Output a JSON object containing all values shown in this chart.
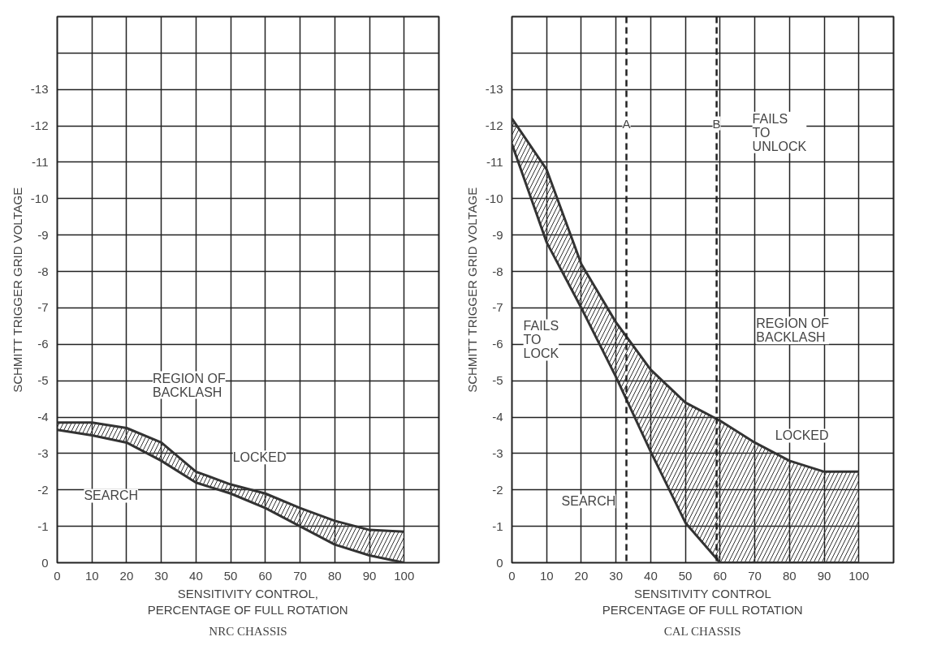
{
  "chart_data": [
    {
      "type": "line",
      "title": "NRC CHASSIS",
      "xlabel": "SENSITIVITY CONTROL,\nPERCENTAGE OF FULL ROTATION",
      "ylabel": "SCHMITT TRIGGER GRID VOLTAGE",
      "x": [
        0,
        10,
        20,
        30,
        40,
        50,
        60,
        70,
        80,
        90,
        100
      ],
      "series": [
        {
          "color": "#333333",
          "values": [
            -3.85,
            -3.85,
            -3.7,
            -3.3,
            -2.5,
            -2.15,
            -1.9,
            -1.5,
            -1.15,
            -0.9,
            -0.85
          ]
        },
        {
          "color": "#333333",
          "values": [
            -3.65,
            -3.5,
            -3.3,
            -2.8,
            -2.2,
            -1.9,
            -1.5,
            -1.0,
            -0.5,
            -0.2,
            0
          ],
          "lower": [
            -3.65,
            -3.5,
            -3.3,
            -2.8,
            -2.2,
            -1.9,
            -1.5,
            -1.0,
            -0.5,
            -0.2,
            0
          ],
          "upper": [
            -3.85,
            -3.85,
            -3.7,
            -3.3,
            -2.5,
            -2.15,
            -1.9,
            -1.5,
            -1.15,
            -0.9,
            -0.85
          ]
        }
      ],
      "xlim": [
        0,
        110
      ],
      "xticks": [
        0,
        10,
        20,
        30,
        40,
        50,
        60,
        70,
        80,
        90,
        100
      ],
      "ylim": [
        0,
        -15
      ],
      "yticks": [
        0,
        -1,
        -2,
        -3,
        -4,
        -5,
        -6,
        -7,
        -8,
        -9,
        -10,
        -11,
        -12,
        -13,
        {
          "value": -14,
          "label": null
        }
      ],
      "grid": true,
      "line_style": "solid",
      "annotations": [
        "REGION OF\nBACKLASH",
        "LOCKED",
        "SEARCH"
      ]
    },
    {
      "type": "line",
      "title": "CAL CHASSIS",
      "xlabel": "SENSITIVITY CONTROL\nPERCENTAGE OF FULL ROTATION",
      "ylabel": "SCHMITT TRIGGER GRID VOLTAGE",
      "x": [
        0,
        10,
        20,
        30,
        40,
        50,
        60,
        70,
        80,
        90,
        100
      ],
      "series": [
        {
          "color": "#333333",
          "values": [
            -12.2,
            -10.8,
            -8.2,
            -6.6,
            -5.3,
            -4.4,
            -3.9,
            -3.3,
            -2.8,
            -2.5,
            -2.5
          ]
        },
        {
          "color": "#333333",
          "values": [
            -11.5,
            -8.8,
            -7.0,
            -5.1,
            -3.05,
            -1.1,
            0,
            0,
            0,
            0,
            0
          ],
          "lower": [
            -11.5,
            -8.8,
            -7.0,
            -5.1,
            -3.05,
            -1.1,
            0,
            0,
            0,
            0,
            0
          ],
          "upper": [
            -12.2,
            -10.8,
            -8.2,
            -6.6,
            -5.3,
            -4.4,
            -3.9,
            -3.3,
            -2.8,
            -2.5,
            -2.5
          ]
        }
      ],
      "xlim": [
        0,
        110
      ],
      "xticks": [
        0,
        10,
        20,
        30,
        40,
        50,
        60,
        70,
        80,
        90,
        100
      ],
      "ylim": [
        0,
        -15
      ],
      "yticks": [
        0,
        -1,
        -2,
        -3,
        -4,
        -5,
        -6,
        -7,
        -8,
        -9,
        -10,
        -11,
        -12,
        -13,
        {
          "value": -14,
          "label": null
        }
      ],
      "grid": true,
      "line_style": "solid",
      "ref_lines": [
        {
          "axis": "x",
          "value": 33,
          "label": "A",
          "line_style": "dashed"
        },
        {
          "axis": "x",
          "value": 59,
          "label": "B",
          "line_style": "dashed"
        }
      ],
      "annotations": [
        "FAILS\nTO\nUNLOCK",
        "FAILS\nTO\nLOCK",
        "REGION OF\nBACKLASH",
        "LOCKED",
        "SEARCH"
      ]
    }
  ]
}
